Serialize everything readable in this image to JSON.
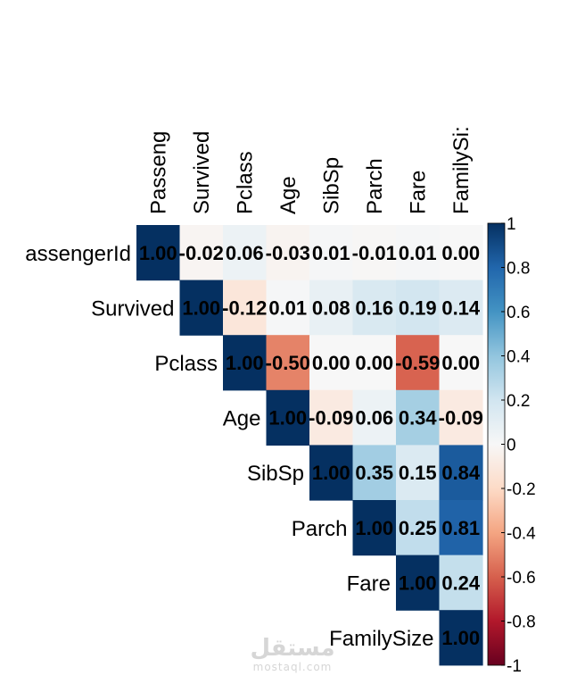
{
  "chart_data": {
    "type": "heatmap",
    "variant": "upper-triangle correlation matrix",
    "columns": [
      "Passeng",
      "Survived",
      "Pclass",
      "Age",
      "SibSp",
      "Parch",
      "Fare",
      "FamilySi:"
    ],
    "rows": [
      "assengerId",
      "Survived",
      "Pclass",
      "Age",
      "SibSp",
      "Parch",
      "Fare",
      "FamilySize"
    ],
    "matrix": [
      [
        1.0,
        -0.02,
        0.06,
        -0.03,
        0.01,
        -0.01,
        0.01,
        0.0
      ],
      [
        null,
        1.0,
        -0.12,
        0.01,
        0.08,
        0.16,
        0.19,
        0.14
      ],
      [
        null,
        null,
        1.0,
        -0.5,
        0.0,
        0.0,
        -0.59,
        0.0
      ],
      [
        null,
        null,
        null,
        1.0,
        -0.09,
        0.06,
        0.34,
        -0.09
      ],
      [
        null,
        null,
        null,
        null,
        1.0,
        0.35,
        0.15,
        0.84
      ],
      [
        null,
        null,
        null,
        null,
        null,
        1.0,
        0.25,
        0.81
      ],
      [
        null,
        null,
        null,
        null,
        null,
        null,
        1.0,
        0.24
      ],
      [
        null,
        null,
        null,
        null,
        null,
        null,
        null,
        1.0
      ]
    ],
    "labels": [
      [
        "1.00",
        "-0.02",
        "0.06",
        "-0.03",
        "0.01",
        "-0.01",
        "0.01",
        "0.00"
      ],
      [
        "",
        "1.00",
        "-0.12",
        "0.01",
        "0.08",
        "0.16",
        "0.19",
        "0.14"
      ],
      [
        "",
        "",
        "1.00",
        "-0.50",
        "0.00",
        "0.00",
        "-0.59",
        "0.00"
      ],
      [
        "",
        "",
        "",
        "1.00",
        "-0.09",
        "0.06",
        "0.34",
        "-0.09"
      ],
      [
        "",
        "",
        "",
        "",
        "1.00",
        "0.35",
        "0.15",
        "0.84"
      ],
      [
        "",
        "",
        "",
        "",
        "",
        "1.00",
        "0.25",
        "0.81"
      ],
      [
        "",
        "",
        "",
        "",
        "",
        "",
        "1.00",
        "0.24"
      ],
      [
        "",
        "",
        "",
        "",
        "",
        "",
        "",
        "1.00"
      ]
    ],
    "color_scale": {
      "range": [
        -1,
        1
      ],
      "colors": [
        "#67001f",
        "#b2182b",
        "#d6604d",
        "#f4a582",
        "#fddbc7",
        "#f7f7f7",
        "#d1e5f0",
        "#92c5de",
        "#4393c3",
        "#2166ac",
        "#053061"
      ],
      "ticks": [
        1,
        0.8,
        0.6,
        0.4,
        0.2,
        0,
        -0.2,
        -0.4,
        -0.6,
        -0.8,
        -1
      ],
      "tick_labels": [
        "1",
        "0.8",
        "0.6",
        "0.4",
        "0.2",
        "0",
        "-0.2",
        "-0.4",
        "-0.6",
        "-0.8",
        "-1"
      ]
    }
  },
  "watermark": {
    "arabic": "مستقل",
    "latin": "mostaql.com"
  }
}
